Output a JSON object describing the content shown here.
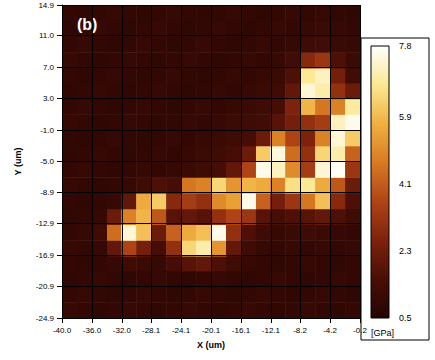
{
  "chart_data": {
    "type": "heatmap",
    "title": "(b)",
    "x_label": "X (um)",
    "y_label": "Y (um)",
    "x": [
      -39.0,
      -37.0,
      -35.0,
      -33.0,
      -31.1,
      -29.1,
      -27.1,
      -25.1,
      -23.1,
      -21.1,
      -19.1,
      -17.1,
      -15.1,
      -13.1,
      -11.2,
      -9.2,
      -7.2,
      -5.2,
      -3.2,
      -1.2
    ],
    "y": [
      -23.9,
      -21.9,
      -19.9,
      -17.9,
      -16.0,
      -14.0,
      -12.0,
      -10.0,
      -8.0,
      -6.0,
      -4.0,
      -2.0,
      0.0,
      2.0,
      4.0,
      6.0,
      7.9,
      9.9,
      11.9,
      13.9
    ],
    "cells": [
      [
        1.0,
        0.9,
        0.8,
        0.9,
        1.0,
        0.9,
        0.8,
        0.9,
        1.0,
        0.9,
        0.8,
        0.9,
        1.0,
        0.9,
        0.8,
        0.9,
        1.0,
        0.9,
        0.8,
        0.9
      ],
      [
        0.9,
        1.0,
        0.9,
        0.8,
        0.9,
        1.0,
        0.9,
        0.8,
        0.9,
        1.0,
        0.9,
        0.8,
        0.9,
        1.0,
        0.9,
        0.8,
        0.9,
        1.0,
        0.9,
        0.8
      ],
      [
        0.8,
        0.9,
        1.0,
        0.9,
        0.8,
        0.9,
        1.0,
        0.9,
        0.8,
        0.9,
        1.0,
        0.9,
        0.8,
        0.9,
        1.0,
        0.9,
        0.8,
        0.9,
        1.0,
        0.9
      ],
      [
        0.9,
        0.8,
        0.9,
        1.0,
        1.2,
        1.1,
        1.0,
        1.4,
        1.8,
        2.0,
        1.6,
        1.2,
        1.0,
        0.9,
        0.8,
        0.9,
        1.0,
        0.9,
        0.8,
        0.9
      ],
      [
        1.0,
        0.9,
        1.0,
        2.0,
        3.6,
        2.4,
        1.4,
        3.0,
        6.4,
        7.0,
        5.2,
        2.0,
        1.2,
        1.0,
        0.9,
        1.0,
        0.9,
        1.0,
        0.9,
        1.0
      ],
      [
        0.9,
        1.0,
        1.2,
        4.4,
        7.4,
        6.0,
        2.2,
        4.2,
        5.6,
        6.0,
        7.6,
        3.0,
        1.6,
        1.2,
        1.0,
        1.1,
        1.2,
        1.1,
        1.0,
        0.9
      ],
      [
        0.8,
        0.9,
        1.0,
        2.2,
        4.8,
        5.8,
        4.0,
        1.8,
        2.0,
        1.8,
        3.0,
        3.6,
        3.2,
        1.8,
        1.4,
        1.6,
        1.8,
        2.0,
        1.6,
        1.2
      ],
      [
        0.9,
        0.8,
        0.9,
        1.0,
        2.0,
        5.6,
        6.2,
        2.8,
        3.4,
        3.0,
        5.0,
        5.4,
        7.6,
        4.2,
        2.4,
        3.2,
        4.6,
        6.0,
        2.8,
        1.6
      ],
      [
        1.0,
        0.9,
        0.8,
        0.9,
        1.0,
        1.2,
        1.6,
        1.4,
        4.6,
        4.8,
        6.4,
        5.2,
        5.8,
        5.6,
        4.8,
        6.6,
        6.8,
        5.6,
        4.0,
        2.2
      ],
      [
        0.9,
        1.0,
        0.9,
        0.8,
        0.9,
        1.0,
        0.9,
        1.0,
        1.1,
        1.2,
        1.4,
        2.0,
        3.6,
        7.6,
        7.2,
        5.0,
        3.4,
        7.4,
        7.7,
        3.2
      ],
      [
        0.8,
        0.9,
        1.0,
        0.9,
        0.8,
        0.9,
        1.0,
        0.9,
        1.0,
        1.1,
        1.2,
        1.4,
        2.2,
        6.2,
        7.5,
        4.4,
        3.0,
        6.4,
        7.0,
        4.2
      ],
      [
        0.9,
        0.8,
        0.9,
        1.0,
        0.9,
        0.8,
        0.9,
        1.0,
        0.9,
        1.0,
        1.1,
        1.2,
        1.4,
        2.2,
        4.8,
        3.6,
        2.6,
        4.8,
        7.4,
        6.2
      ],
      [
        1.0,
        0.9,
        0.8,
        0.9,
        1.0,
        0.9,
        0.8,
        0.9,
        1.0,
        0.9,
        1.0,
        1.1,
        1.2,
        1.3,
        1.8,
        2.4,
        3.0,
        3.4,
        7.2,
        7.6
      ],
      [
        0.9,
        1.0,
        0.9,
        0.8,
        0.9,
        1.0,
        0.9,
        0.8,
        0.9,
        1.0,
        0.9,
        1.0,
        1.1,
        1.2,
        1.4,
        2.6,
        5.8,
        4.6,
        4.8,
        6.9
      ],
      [
        0.8,
        0.9,
        1.0,
        0.9,
        0.8,
        0.9,
        1.0,
        0.9,
        0.8,
        0.9,
        1.0,
        0.9,
        1.0,
        1.1,
        1.2,
        2.0,
        7.4,
        7.0,
        3.0,
        2.2
      ],
      [
        0.9,
        0.8,
        0.9,
        1.0,
        0.9,
        0.8,
        0.9,
        1.0,
        0.9,
        0.8,
        0.9,
        1.0,
        0.9,
        1.0,
        1.1,
        1.6,
        6.8,
        7.2,
        2.4,
        1.3
      ],
      [
        1.0,
        0.9,
        0.8,
        0.9,
        1.0,
        0.9,
        0.8,
        0.9,
        1.0,
        0.9,
        0.8,
        0.9,
        1.0,
        0.9,
        1.0,
        1.3,
        2.8,
        3.2,
        1.6,
        1.1
      ],
      [
        0.9,
        1.0,
        0.9,
        0.8,
        0.9,
        1.0,
        0.9,
        0.8,
        0.9,
        1.0,
        0.9,
        0.8,
        0.9,
        1.0,
        0.9,
        1.0,
        1.2,
        1.3,
        1.1,
        1.0
      ],
      [
        0.8,
        0.9,
        1.0,
        0.9,
        0.8,
        0.9,
        1.0,
        0.9,
        0.8,
        0.9,
        1.0,
        0.9,
        0.8,
        0.9,
        1.0,
        0.9,
        1.0,
        1.1,
        1.0,
        0.9
      ],
      [
        0.9,
        0.8,
        0.9,
        1.0,
        0.9,
        0.8,
        0.9,
        1.0,
        0.9,
        0.8,
        0.9,
        1.0,
        0.9,
        0.8,
        0.9,
        1.0,
        0.9,
        1.0,
        0.9,
        0.8
      ]
    ],
    "xlim": [
      -40,
      -0.2
    ],
    "ylim": [
      -24.9,
      14.9
    ],
    "xticks": [
      {
        "value": -40,
        "label": "-40.0"
      },
      {
        "value": -36,
        "label": "-36.0"
      },
      {
        "value": -32,
        "label": "-32.0"
      },
      -28.1,
      -24.1,
      -20.1,
      -16.1,
      -12.1,
      -8.2,
      -4.2,
      -0.2
    ],
    "yticks": [
      -24.9,
      -20.9,
      -16.9,
      -12.9,
      -8.9,
      {
        "value": -5,
        "label": "-5.0"
      },
      {
        "value": -1,
        "label": "-1.0"
      },
      {
        "value": 3,
        "label": "3.0"
      },
      {
        "value": 7,
        "label": "7.0"
      },
      {
        "value": 11,
        "label": "11.0"
      },
      14.9
    ],
    "grid": true,
    "colorbar": {
      "label": "[GPa]",
      "range": [
        0.5,
        7.8
      ],
      "ticks": [
        0.5,
        2.3,
        4.1,
        5.9,
        7.8
      ]
    }
  }
}
